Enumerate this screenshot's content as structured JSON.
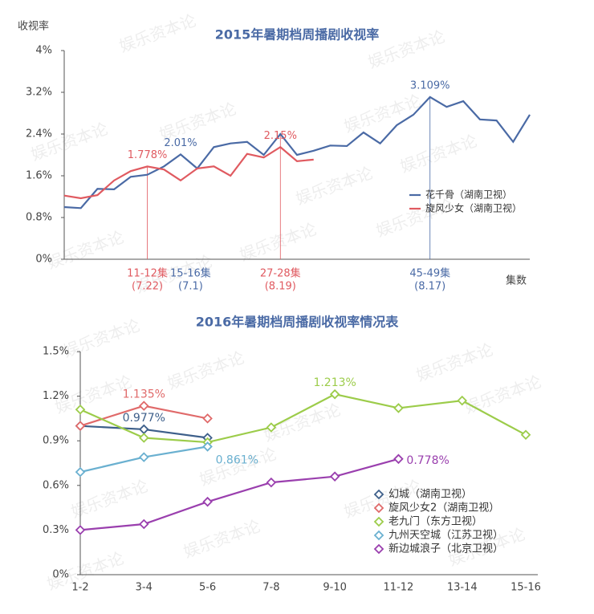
{
  "watermark": "娱乐资本论",
  "chart_data": [
    {
      "type": "line",
      "title": "2015年暑期档周播剧收视率",
      "y_label": "收视率",
      "x_label": "集数",
      "categories": [
        null,
        null,
        null,
        null,
        null,
        null,
        null,
        null,
        null,
        null,
        null,
        null,
        null,
        null,
        null,
        null,
        null,
        null,
        null,
        null,
        null,
        null,
        null,
        null,
        null,
        null,
        null,
        null,
        null
      ],
      "ylim": [
        0,
        4
      ],
      "yticks": [
        {
          "value": 0,
          "label": "0%"
        },
        {
          "value": 0.8,
          "label": "0.8%"
        },
        {
          "value": 1.6,
          "label": "1.6%"
        },
        {
          "value": 2.4,
          "label": "2.4%"
        },
        {
          "value": 3.2,
          "label": "3.2%"
        },
        {
          "value": 4,
          "label": "4%"
        }
      ],
      "series": [
        {
          "name": "花千骨（湖南卫视）",
          "color": "#4a6aa5",
          "values": [
            1.0,
            0.98,
            1.35,
            1.34,
            1.58,
            1.62,
            1.78,
            2.01,
            1.74,
            2.15,
            2.22,
            2.25,
            2.0,
            2.4,
            2.0,
            2.08,
            2.18,
            2.17,
            2.43,
            2.22,
            2.57,
            2.77,
            3.109,
            2.92,
            3.03,
            2.68,
            2.66,
            2.25,
            2.77
          ],
          "value_labels": [
            null,
            null,
            null,
            null,
            null,
            null,
            null,
            "2.01%",
            null,
            null,
            null,
            null,
            null,
            null,
            null,
            null,
            null,
            null,
            null,
            null,
            null,
            null,
            "3.109%",
            null,
            null,
            null,
            null,
            null,
            null
          ]
        },
        {
          "name": "旋风少女（湖南卫视）",
          "color": "#e05a60",
          "values": [
            1.22,
            1.17,
            1.23,
            1.51,
            1.69,
            1.778,
            1.72,
            1.51,
            1.74,
            1.78,
            1.6,
            2.02,
            1.95,
            2.15,
            1.88,
            1.91,
            null,
            null,
            null,
            null,
            null,
            null,
            null,
            null,
            null,
            null,
            null,
            null,
            null
          ],
          "value_labels": [
            null,
            null,
            null,
            null,
            null,
            "1.778%",
            null,
            null,
            null,
            null,
            null,
            null,
            null,
            "2.15%",
            null,
            null,
            null,
            null,
            null,
            null,
            null,
            null,
            null,
            null,
            null,
            null,
            null,
            null,
            null
          ]
        }
      ],
      "annotations": [
        {
          "label": "11-12集",
          "note": "(7.22)",
          "at": 5,
          "color": "#e05a60",
          "line": true
        },
        {
          "label": "15-16集",
          "note": "(7.1)",
          "at": 7.6,
          "color": "#4a6aa5",
          "line": false
        },
        {
          "label": "27-28集",
          "note": "(8.19)",
          "at": 13,
          "color": "#e05a60",
          "line": true
        },
        {
          "label": "45-49集",
          "note": "(8.17)",
          "at": 22,
          "color": "#4a6aa5",
          "line": true
        }
      ]
    },
    {
      "type": "line",
      "title": "2016年暑期档周播剧收视率情况表",
      "markers": "diamond",
      "categories": [
        "1-2",
        "3-4",
        "5-6",
        "7-8",
        "9-10",
        "11-12",
        "13-14",
        "15-16"
      ],
      "ylim": [
        0,
        1.5
      ],
      "yticks": [
        {
          "value": 0,
          "label": "0%"
        },
        {
          "value": 0.3,
          "label": "0.3%"
        },
        {
          "value": 0.6,
          "label": "0.6%"
        },
        {
          "value": 0.9,
          "label": "0.9%"
        },
        {
          "value": 1.2,
          "label": "1.2%"
        },
        {
          "value": 1.5,
          "label": "1.5%"
        }
      ],
      "series": [
        {
          "name": "幻城（湖南卫视）",
          "color": "#3d5f8a",
          "values": [
            1.0,
            0.977,
            0.92,
            null,
            null,
            null,
            null,
            null
          ],
          "value_labels": [
            null,
            "0.977%",
            null,
            null,
            null,
            null,
            null,
            null
          ]
        },
        {
          "name": "旋风少女2（湖南卫视）",
          "color": "#e06a6a",
          "values": [
            1.0,
            1.135,
            1.05,
            null,
            null,
            null,
            null,
            null
          ],
          "value_labels": [
            null,
            "1.135%",
            null,
            null,
            null,
            null,
            null,
            null
          ]
        },
        {
          "name": "老九门（东方卫视）",
          "color": "#9ccc4a",
          "values": [
            1.11,
            0.92,
            0.89,
            0.99,
            1.213,
            1.12,
            1.17,
            0.94
          ],
          "value_labels": [
            null,
            null,
            null,
            null,
            "1.213%",
            null,
            null,
            null
          ]
        },
        {
          "name": "九州天空城（江苏卫视）",
          "color": "#6ab0d0",
          "values": [
            0.69,
            0.79,
            0.861,
            null,
            null,
            null,
            null,
            null
          ],
          "value_labels": [
            null,
            null,
            "0.861%",
            null,
            null,
            null,
            null,
            null
          ]
        },
        {
          "name": "新边城浪子（北京卫视）",
          "color": "#9a3fae",
          "values": [
            0.3,
            0.34,
            0.49,
            0.62,
            0.66,
            0.778,
            null,
            null
          ],
          "value_labels": [
            null,
            null,
            null,
            null,
            null,
            "0.778%",
            null,
            null
          ]
        }
      ]
    }
  ]
}
